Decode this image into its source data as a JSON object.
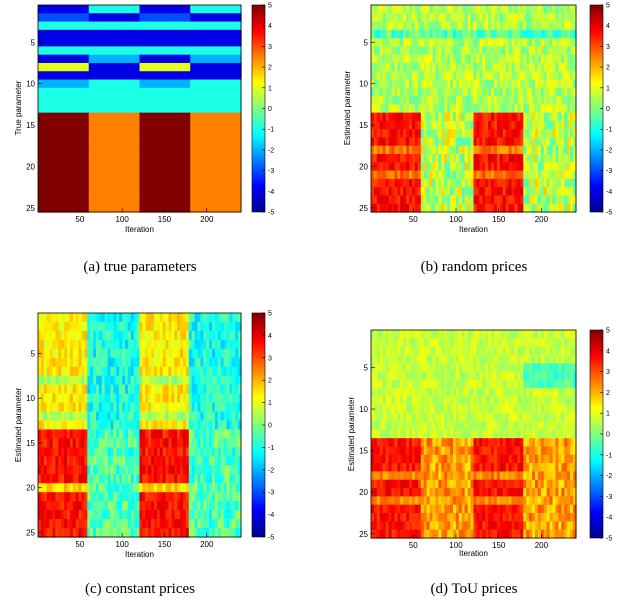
{
  "colorbar_ticks": [
    "5",
    "4",
    "3",
    "2",
    "1",
    "0",
    "-1",
    "-2",
    "-3",
    "-4",
    "-5"
  ],
  "panels": [
    {
      "caption": "(a) true parameters",
      "ylabel": "True parameter",
      "xlabel": "Iteration",
      "y_ticks": [
        "5",
        "10",
        "15",
        "20",
        "25"
      ],
      "x_ticks": [
        "50",
        "100",
        "150",
        "200"
      ],
      "pattern": "true"
    },
    {
      "caption": "(b) random prices",
      "ylabel": "Estimated parameter",
      "xlabel": "Iteration",
      "y_ticks": [
        "5",
        "10",
        "15",
        "20",
        "25"
      ],
      "x_ticks": [
        "50",
        "100",
        "150",
        "200"
      ],
      "pattern": "random"
    },
    {
      "caption": "(c) constant prices",
      "ylabel": "Estimated parameter",
      "xlabel": "Iteration",
      "y_ticks": [
        "5",
        "10",
        "15",
        "20",
        "25"
      ],
      "x_ticks": [
        "50",
        "100",
        "150",
        "200"
      ],
      "pattern": "constant"
    },
    {
      "caption": "(d) ToU prices",
      "ylabel": "Estimated parameter",
      "xlabel": "Iteration",
      "y_ticks": [
        "5",
        "10",
        "15",
        "20",
        "25"
      ],
      "x_ticks": [
        "50",
        "100",
        "150",
        "200"
      ],
      "pattern": "tou"
    }
  ],
  "chart_data": [
    {
      "type": "heatmap",
      "xlabel": "Iteration",
      "ylabel": "True parameter",
      "x_range": [
        1,
        240
      ],
      "y_range": [
        1,
        25
      ],
      "color_range": [
        -5,
        5
      ],
      "colormap": "jet",
      "column_blocks": [
        [
          1,
          60
        ],
        [
          61,
          120
        ],
        [
          121,
          180
        ],
        [
          181,
          240
        ]
      ],
      "rows_1_to_13": {
        "blocks_1_3": [
          -4,
          -3,
          -1,
          -4,
          -4,
          -1,
          -4,
          1,
          -4,
          -2,
          -1,
          -1,
          -1
        ],
        "blocks_2_4": [
          -1,
          -4,
          -1,
          -4,
          -4,
          -1,
          -2,
          -4,
          -4,
          -1,
          -1,
          -1,
          -1
        ]
      },
      "rows_14_to_25": {
        "blocks_1_3": 5,
        "blocks_2_4": 2.5
      }
    },
    {
      "type": "heatmap",
      "xlabel": "Iteration",
      "ylabel": "Estimated parameter",
      "x_range": [
        1,
        240
      ],
      "y_range": [
        1,
        25
      ],
      "color_range": [
        -5,
        5
      ],
      "colormap": "jet",
      "summary": "rows 1-13 near 0 to 1 with noise; rows 14-25 near 3.5 in blocks 1 and 3, near 0 to 1 (noisy) in blocks 2 and 4"
    },
    {
      "type": "heatmap",
      "xlabel": "Iteration",
      "ylabel": "Estimated parameter",
      "x_range": [
        1,
        240
      ],
      "y_range": [
        1,
        25
      ],
      "color_range": [
        -5,
        5
      ],
      "colormap": "jet",
      "summary": "rows 1-13 near 1 to 2 in blocks 1 and 3, near -1 in blocks 2 and 4; rows 14-25 near 3.5 in blocks 1 and 3, near -0.5 in blocks 2 and 4"
    },
    {
      "type": "heatmap",
      "xlabel": "Iteration",
      "ylabel": "Estimated parameter",
      "x_range": [
        1,
        240
      ],
      "y_range": [
        1,
        25
      ],
      "color_range": [
        -5,
        5
      ],
      "colormap": "jet",
      "summary": "rows 1-13 near 0.5 to 1; rows 14-25 near 3.5 in blocks 1 and 3, near 1.5 to 3 in blocks 2 and 4"
    }
  ]
}
